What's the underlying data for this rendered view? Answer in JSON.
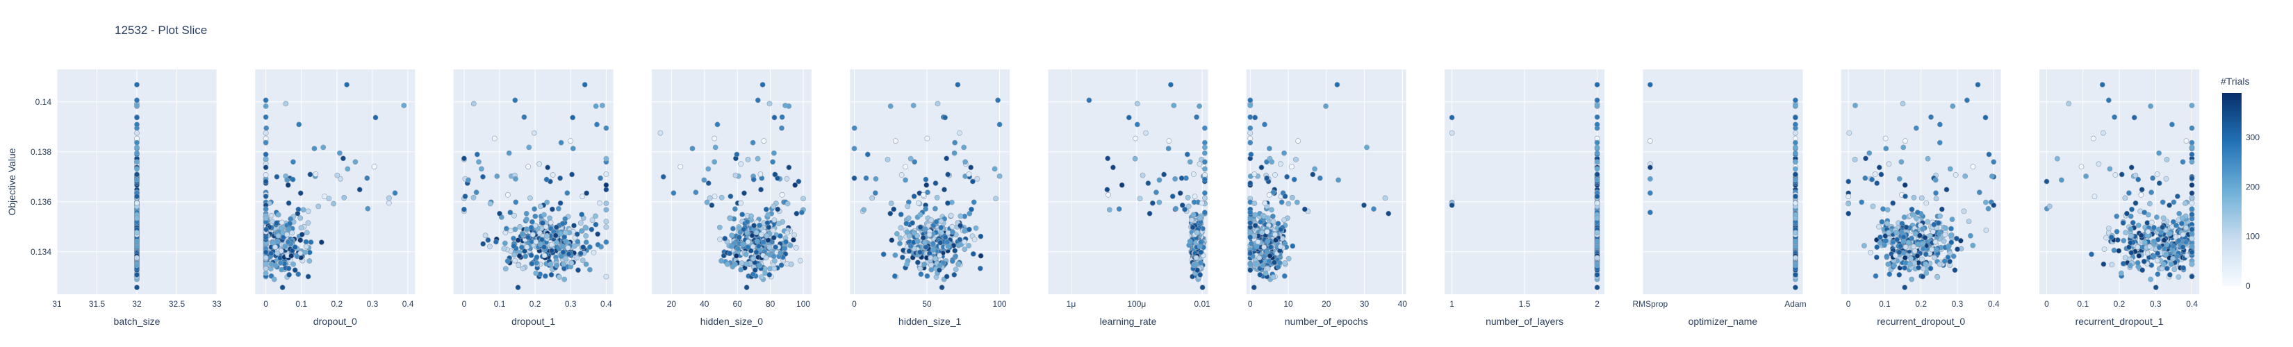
{
  "title": "12532 - Plot Slice",
  "chart_data": {
    "type": "scatter",
    "title": "12532 - Plot Slice",
    "ylabel": "Objective Value",
    "y_ticks": [
      "0.134",
      "0.136",
      "0.138",
      "0.14"
    ],
    "ylim": [
      0.1323,
      0.1413
    ],
    "colorbar": {
      "title": "#Trials",
      "ticks": [
        "0",
        "100",
        "200",
        "300"
      ],
      "range": [
        0,
        390
      ]
    },
    "colorscale": [
      "#f7fbff",
      "#c6dbef",
      "#6baed6",
      "#2171b5",
      "#08306b"
    ],
    "panels": [
      {
        "xlabel": "batch_size",
        "xscale": "linear",
        "xlim": [
          31,
          33
        ],
        "ticks": [
          {
            "v": 31,
            "label": "31"
          },
          {
            "v": 31.5,
            "label": "31.5"
          },
          {
            "v": 32,
            "label": "32"
          },
          {
            "v": 32.5,
            "label": "32.5"
          },
          {
            "v": 33,
            "label": "33"
          }
        ],
        "dist": {
          "kind": "const",
          "value": 32
        }
      },
      {
        "xlabel": "dropout_0",
        "xscale": "linear",
        "xlim": [
          -0.03,
          0.42
        ],
        "ticks": [
          {
            "v": 0,
            "label": "0"
          },
          {
            "v": 0.1,
            "label": "0.1"
          },
          {
            "v": 0.2,
            "label": "0.2"
          },
          {
            "v": 0.3,
            "label": "0.3"
          },
          {
            "v": 0.4,
            "label": "0.4"
          }
        ],
        "dist": {
          "kind": "cont",
          "center": 0.02,
          "spread": 0.05,
          "min": 0,
          "max": 0.4
        }
      },
      {
        "xlabel": "dropout_1",
        "xscale": "linear",
        "xlim": [
          -0.03,
          0.42
        ],
        "ticks": [
          {
            "v": 0,
            "label": "0"
          },
          {
            "v": 0.1,
            "label": "0.1"
          },
          {
            "v": 0.2,
            "label": "0.2"
          },
          {
            "v": 0.3,
            "label": "0.3"
          },
          {
            "v": 0.4,
            "label": "0.4"
          }
        ],
        "dist": {
          "kind": "cont",
          "center": 0.24,
          "spread": 0.07,
          "min": 0,
          "max": 0.4
        }
      },
      {
        "xlabel": "hidden_size_0",
        "xscale": "linear",
        "xlim": [
          8,
          105
        ],
        "ticks": [
          {
            "v": 20,
            "label": "20"
          },
          {
            "v": 40,
            "label": "40"
          },
          {
            "v": 60,
            "label": "60"
          },
          {
            "v": 80,
            "label": "80"
          },
          {
            "v": 100,
            "label": "100"
          }
        ],
        "dist": {
          "kind": "cont",
          "center": 72,
          "spread": 10,
          "min": 12,
          "max": 100
        }
      },
      {
        "xlabel": "hidden_size_1",
        "xscale": "linear",
        "xlim": [
          -3,
          107
        ],
        "ticks": [
          {
            "v": 0,
            "label": "0"
          },
          {
            "v": 50,
            "label": "50"
          },
          {
            "v": 100,
            "label": "100"
          }
        ],
        "dist": {
          "kind": "cont",
          "center": 55,
          "spread": 12,
          "min": 0,
          "max": 100
        }
      },
      {
        "xlabel": "learning_rate",
        "xscale": "log",
        "xlim": [
          2e-07,
          0.015
        ],
        "ticks": [
          {
            "v": 1e-06,
            "label": "1μ"
          },
          {
            "v": 0.0001,
            "label": "100μ"
          },
          {
            "v": 0.01,
            "label": "0.01"
          }
        ],
        "dist": {
          "kind": "cont",
          "center": 0.007,
          "spread": 0.3,
          "min": 1e-06,
          "max": 0.012
        }
      },
      {
        "xlabel": "number_of_epochs",
        "xscale": "linear",
        "xlim": [
          -1,
          41
        ],
        "ticks": [
          {
            "v": 0,
            "label": "0"
          },
          {
            "v": 10,
            "label": "10"
          },
          {
            "v": 20,
            "label": "20"
          },
          {
            "v": 30,
            "label": "30"
          },
          {
            "v": 40,
            "label": "40"
          }
        ],
        "dist": {
          "kind": "cont",
          "center": 4,
          "spread": 3,
          "min": 0,
          "max": 38
        }
      },
      {
        "xlabel": "number_of_layers",
        "xscale": "linear",
        "xlim": [
          0.95,
          2.05
        ],
        "ticks": [
          {
            "v": 1,
            "label": "1"
          },
          {
            "v": 1.5,
            "label": "1.5"
          },
          {
            "v": 2,
            "label": "2"
          }
        ],
        "dist": {
          "kind": "cat",
          "values": [
            1,
            2
          ],
          "weights": [
            0.05,
            0.95
          ]
        }
      },
      {
        "xlabel": "optimizer_name",
        "xscale": "category",
        "xlim": [
          -0.05,
          1.05
        ],
        "ticks": [
          {
            "v": 0,
            "label": "RMSprop"
          },
          {
            "v": 1,
            "label": "Adam"
          }
        ],
        "dist": {
          "kind": "cat",
          "values": [
            0,
            1
          ],
          "weights": [
            0.05,
            0.95
          ]
        }
      },
      {
        "xlabel": "recurrent_dropout_0",
        "xscale": "linear",
        "xlim": [
          -0.02,
          0.42
        ],
        "ticks": [
          {
            "v": 0,
            "label": "0"
          },
          {
            "v": 0.1,
            "label": "0.1"
          },
          {
            "v": 0.2,
            "label": "0.2"
          },
          {
            "v": 0.3,
            "label": "0.3"
          },
          {
            "v": 0.4,
            "label": "0.4"
          }
        ],
        "dist": {
          "kind": "cont",
          "center": 0.19,
          "spread": 0.06,
          "min": 0,
          "max": 0.4
        }
      },
      {
        "xlabel": "recurrent_dropout_1",
        "xscale": "linear",
        "xlim": [
          -0.02,
          0.42
        ],
        "ticks": [
          {
            "v": 0,
            "label": "0"
          },
          {
            "v": 0.1,
            "label": "0.1"
          },
          {
            "v": 0.2,
            "label": "0.2"
          },
          {
            "v": 0.3,
            "label": "0.3"
          },
          {
            "v": 0.4,
            "label": "0.4"
          }
        ],
        "dist": {
          "kind": "cont",
          "center": 0.32,
          "spread": 0.07,
          "min": 0,
          "max": 0.4
        }
      }
    ]
  }
}
